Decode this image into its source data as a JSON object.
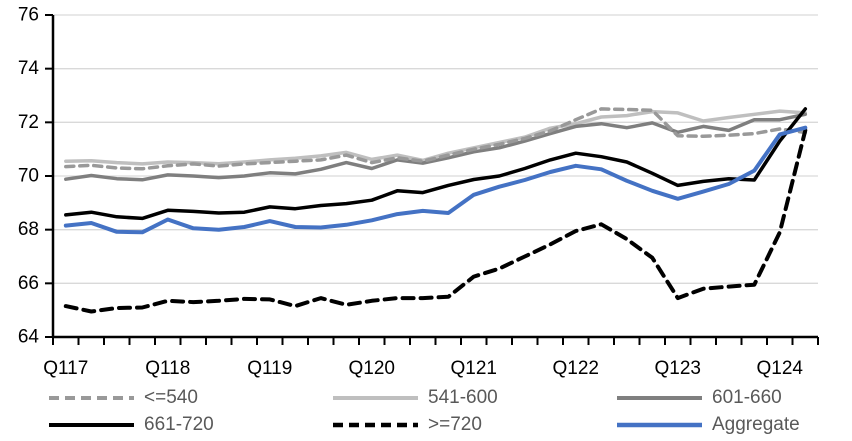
{
  "chart_data": {
    "type": "line",
    "title": "",
    "xlabel": "",
    "ylabel": "",
    "ylim": [
      64,
      76
    ],
    "y_ticks": [
      64,
      66,
      68,
      70,
      72,
      74,
      76
    ],
    "x_year_labels": [
      "Q117",
      "Q118",
      "Q119",
      "Q120",
      "Q121",
      "Q122",
      "Q123",
      "Q124"
    ],
    "x_quarters": [
      "Q1 2017",
      "Q2 2017",
      "Q3 2017",
      "Q4 2017",
      "Q1 2018",
      "Q2 2018",
      "Q3 2018",
      "Q4 2018",
      "Q1 2019",
      "Q2 2019",
      "Q3 2019",
      "Q4 2019",
      "Q1 2020",
      "Q2 2020",
      "Q3 2020",
      "Q4 2020",
      "Q1 2021",
      "Q2 2021",
      "Q3 2021",
      "Q4 2021",
      "Q1 2022",
      "Q2 2022",
      "Q3 2022",
      "Q4 2022",
      "Q1 2023",
      "Q2 2023",
      "Q3 2023",
      "Q4 2023",
      "Q1 2024",
      "Q2 2024"
    ],
    "grid": "horizontal",
    "legend_position": "bottom",
    "axis_color": "#000000",
    "gridline_color": "#d9d9d9",
    "legend_text_color": "#595959",
    "series": [
      {
        "name": "<=540",
        "color": "#999999",
        "dash": "dashed",
        "width": 3.5,
        "values": [
          70.35,
          70.4,
          70.3,
          70.27,
          70.38,
          70.45,
          70.37,
          70.45,
          70.5,
          70.55,
          70.6,
          70.78,
          70.5,
          70.68,
          70.55,
          70.78,
          71.0,
          71.18,
          71.4,
          71.68,
          72.1,
          72.5,
          72.48,
          72.45,
          71.5,
          71.48,
          71.52,
          71.58,
          71.75,
          71.62
        ]
      },
      {
        "name": "541-600",
        "color": "#bfbfbf",
        "dash": "solid",
        "width": 3.5,
        "values": [
          70.55,
          70.57,
          70.5,
          70.45,
          70.52,
          70.5,
          70.46,
          70.52,
          70.6,
          70.66,
          70.75,
          70.88,
          70.62,
          70.78,
          70.58,
          70.85,
          71.05,
          71.25,
          71.45,
          71.78,
          71.95,
          72.2,
          72.25,
          72.4,
          72.35,
          72.05,
          72.18,
          72.3,
          72.42,
          72.35
        ]
      },
      {
        "name": "601-660",
        "color": "#7f7f7f",
        "dash": "solid",
        "width": 3.5,
        "values": [
          69.88,
          70.02,
          69.9,
          69.86,
          70.04,
          70.0,
          69.94,
          70.0,
          70.12,
          70.08,
          70.25,
          70.5,
          70.28,
          70.6,
          70.48,
          70.68,
          70.9,
          71.05,
          71.3,
          71.58,
          71.85,
          71.95,
          71.8,
          71.98,
          71.63,
          71.85,
          71.7,
          72.1,
          72.1,
          72.3
        ]
      },
      {
        "name": "661-720",
        "color": "#000000",
        "dash": "solid",
        "width": 3.5,
        "values": [
          68.55,
          68.65,
          68.48,
          68.42,
          68.72,
          68.68,
          68.62,
          68.65,
          68.85,
          68.78,
          68.9,
          68.97,
          69.1,
          69.45,
          69.38,
          69.65,
          69.87,
          70.0,
          70.28,
          70.6,
          70.85,
          70.72,
          70.52,
          70.1,
          69.65,
          69.8,
          69.9,
          69.85,
          71.3,
          72.5
        ]
      },
      {
        "name": ">=720",
        "color": "#000000",
        "dash": "dashed",
        "width": 4,
        "values": [
          65.15,
          64.95,
          65.08,
          65.1,
          65.35,
          65.3,
          65.35,
          65.42,
          65.4,
          65.15,
          65.45,
          65.2,
          65.35,
          65.45,
          65.45,
          65.5,
          66.25,
          66.55,
          67.0,
          67.45,
          67.95,
          68.2,
          67.65,
          66.95,
          65.45,
          65.8,
          65.88,
          65.95,
          67.9,
          71.7
        ]
      },
      {
        "name": "Aggregate",
        "color": "#4472c4",
        "dash": "solid",
        "width": 4,
        "values": [
          68.15,
          68.25,
          67.92,
          67.9,
          68.38,
          68.05,
          68.0,
          68.1,
          68.32,
          68.1,
          68.08,
          68.18,
          68.35,
          68.58,
          68.7,
          68.62,
          69.3,
          69.6,
          69.85,
          70.15,
          70.38,
          70.25,
          69.82,
          69.45,
          69.15,
          69.42,
          69.7,
          70.2,
          71.55,
          71.8
        ]
      }
    ]
  }
}
